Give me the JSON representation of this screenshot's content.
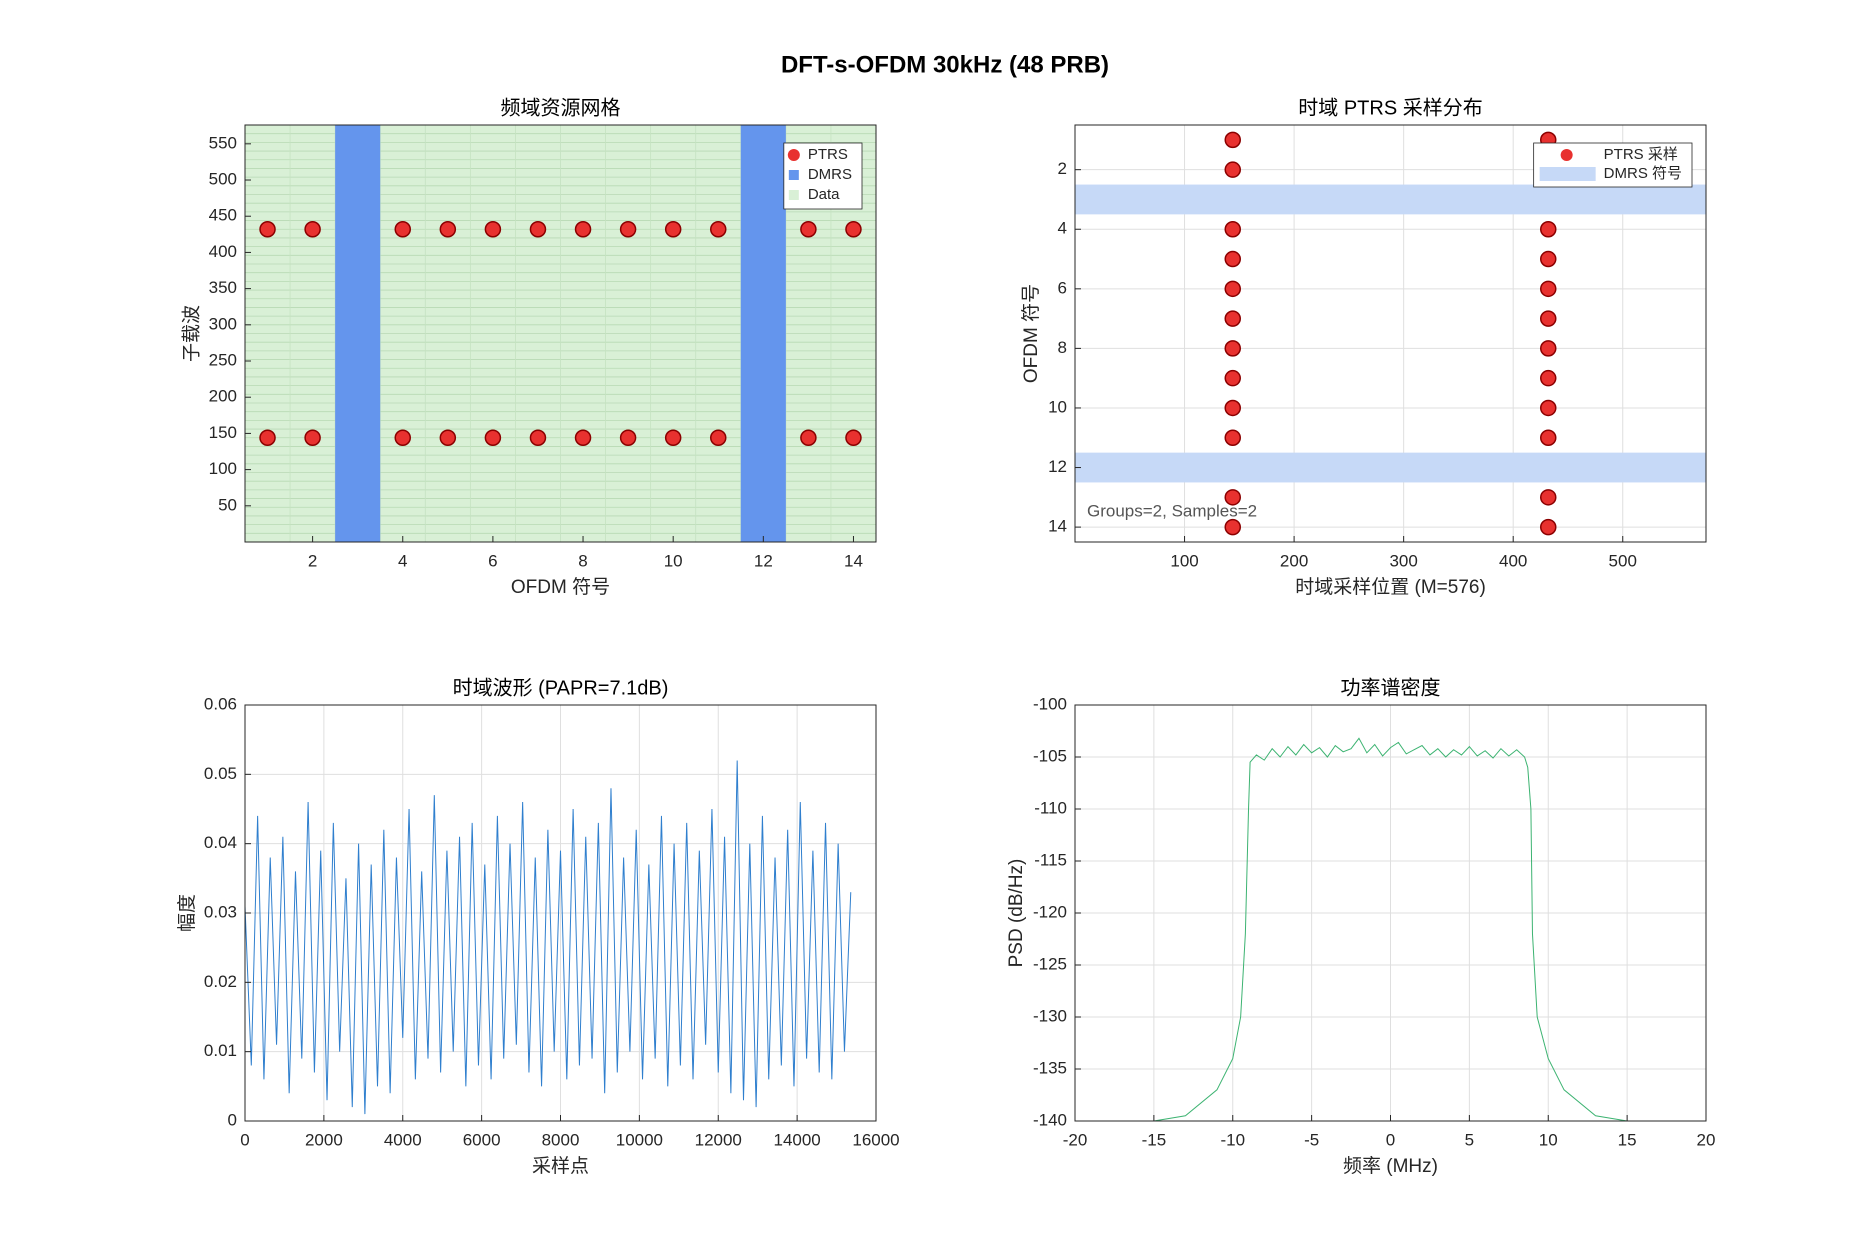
{
  "title": "DFT-s-OFDM 30kHz (48 PRB)",
  "chart_data": [
    {
      "type": "grid",
      "title": "频域资源网格",
      "xlabel": "OFDM 符号",
      "ylabel": "子载波",
      "xlim": [
        0.5,
        14.5
      ],
      "ylim": [
        0,
        576
      ],
      "xticks": [
        2,
        4,
        6,
        8,
        10,
        12,
        14
      ],
      "yticks": [
        50,
        100,
        150,
        200,
        250,
        300,
        350,
        400,
        450,
        500,
        550
      ],
      "grid": false,
      "legend": "upper right",
      "series": [
        {
          "name": "PTRS",
          "color": "#e8312f",
          "kind": "scatter",
          "x": [
            1,
            2,
            4,
            5,
            6,
            7,
            8,
            9,
            10,
            11,
            13,
            14,
            1,
            2,
            4,
            5,
            6,
            7,
            8,
            9,
            10,
            11,
            13,
            14
          ],
          "values": [
            144,
            144,
            144,
            144,
            144,
            144,
            144,
            144,
            144,
            144,
            144,
            144,
            432,
            432,
            432,
            432,
            432,
            432,
            432,
            432,
            432,
            432,
            432,
            432
          ]
        },
        {
          "name": "DMRS",
          "color": "#6495ed",
          "kind": "column",
          "x": [
            3,
            12
          ]
        },
        {
          "name": "Data",
          "color": "#d9f0d6",
          "kind": "background"
        }
      ]
    },
    {
      "type": "scatter",
      "title": "时域 PTRS 采样分布",
      "xlabel": "时域采样位置 (M=576)",
      "ylabel": "OFDM 符号",
      "xlim": [
        0,
        576
      ],
      "ylim": [
        0.5,
        14.5
      ],
      "y_reversed": true,
      "xticks": [
        100,
        200,
        300,
        400,
        500
      ],
      "yticks": [
        2,
        4,
        6,
        8,
        10,
        12,
        14
      ],
      "grid": true,
      "legend": "upper right",
      "annotation": "Groups=2, Samples=2",
      "series": [
        {
          "name": "PTRS 采样",
          "color": "#e8312f",
          "kind": "scatter",
          "x": [
            144,
            144,
            144,
            144,
            144,
            144,
            144,
            144,
            144,
            144,
            144,
            144,
            432,
            432,
            432,
            432,
            432,
            432,
            432,
            432,
            432,
            432,
            432,
            432
          ],
          "values": [
            1,
            2,
            4,
            5,
            6,
            7,
            8,
            9,
            10,
            11,
            13,
            14,
            1,
            2,
            4,
            5,
            6,
            7,
            8,
            9,
            10,
            11,
            13,
            14
          ]
        },
        {
          "name": "DMRS 符号",
          "color": "#c6d9f7",
          "kind": "row",
          "values": [
            3,
            12
          ]
        }
      ]
    },
    {
      "type": "line",
      "title": "时域波形 (PAPR=7.1dB)",
      "xlabel": "采样点",
      "ylabel": "幅度",
      "xlim": [
        0,
        16000
      ],
      "ylim": [
        0,
        0.06
      ],
      "xticks": [
        0,
        2000,
        4000,
        6000,
        8000,
        10000,
        12000,
        14000,
        16000
      ],
      "yticks": [
        0,
        0.01,
        0.02,
        0.03,
        0.04,
        0.05,
        0.06
      ],
      "grid": true,
      "series": [
        {
          "color": "#2f7fce",
          "kind": "line",
          "x": [
            0,
            160,
            320,
            480,
            640,
            800,
            960,
            1120,
            1280,
            1440,
            1600,
            1760,
            1920,
            2080,
            2240,
            2400,
            2560,
            2720,
            2880,
            3040,
            3200,
            3360,
            3520,
            3680,
            3840,
            4000,
            4160,
            4320,
            4480,
            4640,
            4800,
            4960,
            5120,
            5280,
            5440,
            5600,
            5760,
            5920,
            6080,
            6240,
            6400,
            6560,
            6720,
            6880,
            7040,
            7200,
            7360,
            7520,
            7680,
            7840,
            8000,
            8160,
            8320,
            8480,
            8640,
            8800,
            8960,
            9120,
            9280,
            9440,
            9600,
            9760,
            9920,
            10080,
            10240,
            10400,
            10560,
            10720,
            10880,
            11040,
            11200,
            11360,
            11520,
            11680,
            11840,
            12000,
            12160,
            12320,
            12480,
            12640,
            12800,
            12960,
            13120,
            13280,
            13440,
            13600,
            13760,
            13920,
            14080,
            14240,
            14400,
            14560,
            14720,
            14880,
            15040,
            15200,
            15360
          ],
          "values": [
            0.031,
            0.008,
            0.044,
            0.006,
            0.038,
            0.011,
            0.041,
            0.004,
            0.036,
            0.009,
            0.046,
            0.007,
            0.039,
            0.003,
            0.043,
            0.01,
            0.035,
            0.002,
            0.04,
            0.001,
            0.037,
            0.005,
            0.042,
            0.004,
            0.038,
            0.012,
            0.045,
            0.006,
            0.036,
            0.009,
            0.047,
            0.007,
            0.039,
            0.01,
            0.041,
            0.005,
            0.043,
            0.008,
            0.037,
            0.006,
            0.044,
            0.009,
            0.04,
            0.011,
            0.046,
            0.007,
            0.038,
            0.005,
            0.042,
            0.01,
            0.039,
            0.006,
            0.045,
            0.008,
            0.041,
            0.009,
            0.043,
            0.004,
            0.048,
            0.007,
            0.038,
            0.01,
            0.042,
            0.006,
            0.037,
            0.009,
            0.044,
            0.005,
            0.04,
            0.008,
            0.043,
            0.006,
            0.039,
            0.011,
            0.045,
            0.007,
            0.041,
            0.004,
            0.052,
            0.003,
            0.04,
            0.002,
            0.044,
            0.006,
            0.038,
            0.008,
            0.042,
            0.005,
            0.046,
            0.009,
            0.039,
            0.007,
            0.043,
            0.006,
            0.04,
            0.01,
            0.033
          ]
        }
      ]
    },
    {
      "type": "line",
      "title": "功率谱密度",
      "xlabel": "频率 (MHz)",
      "ylabel": "PSD (dB/Hz)",
      "xlim": [
        -20,
        20
      ],
      "ylim": [
        -140,
        -100
      ],
      "xticks": [
        -20,
        -15,
        -10,
        -5,
        0,
        5,
        10,
        15,
        20
      ],
      "yticks": [
        -140,
        -135,
        -130,
        -125,
        -120,
        -115,
        -110,
        -105,
        -100
      ],
      "grid": true,
      "series": [
        {
          "color": "#3cb371",
          "kind": "line",
          "x": [
            -15,
            -13,
            -11,
            -10,
            -9.5,
            -9.2,
            -9,
            -8.9,
            -8.5,
            -8,
            -7.5,
            -7,
            -6.5,
            -6,
            -5.5,
            -5,
            -4.5,
            -4,
            -3.5,
            -3,
            -2.5,
            -2,
            -1.5,
            -1,
            -0.5,
            0,
            0.5,
            1,
            1.5,
            2,
            2.5,
            3,
            3.5,
            4,
            4.5,
            5,
            5.5,
            6,
            6.5,
            7,
            7.5,
            8,
            8.5,
            8.7,
            8.9,
            9,
            9.3,
            10,
            11,
            13,
            15
          ],
          "values": [
            -140,
            -139.5,
            -137,
            -134,
            -130,
            -122,
            -110,
            -105.5,
            -104.8,
            -105.3,
            -104.2,
            -105,
            -104,
            -104.8,
            -103.8,
            -104.6,
            -104.1,
            -105,
            -103.9,
            -104.5,
            -104.2,
            -103.2,
            -104.6,
            -103.8,
            -104.9,
            -104.1,
            -103.6,
            -104.7,
            -104.3,
            -103.9,
            -104.8,
            -104.2,
            -105,
            -104.3,
            -104.8,
            -104,
            -104.9,
            -104.4,
            -105.1,
            -104.2,
            -104.9,
            -104.3,
            -105,
            -106,
            -110,
            -122,
            -130,
            -134,
            -137,
            -139.5,
            -140
          ]
        }
      ]
    }
  ]
}
